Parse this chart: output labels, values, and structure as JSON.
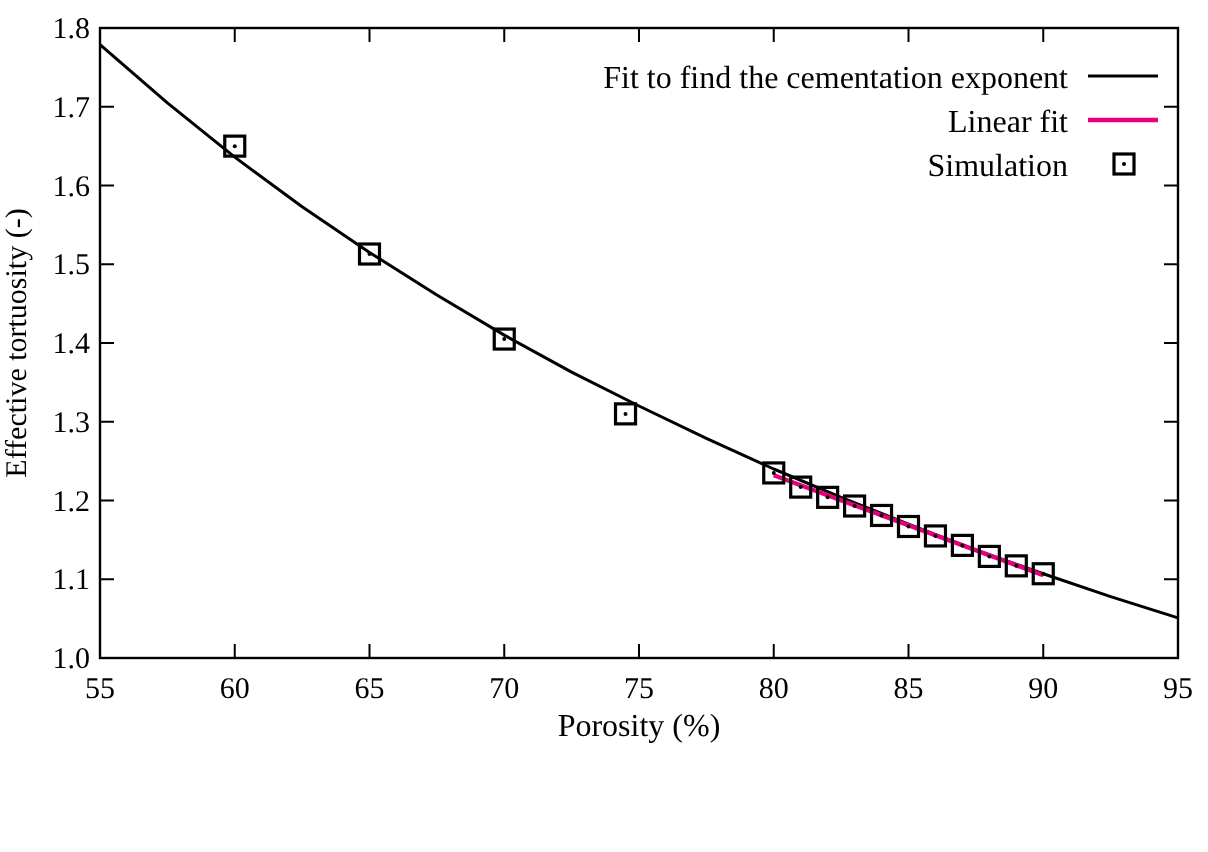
{
  "chart_data": {
    "type": "scatter",
    "xlabel": "Porosity (%)",
    "ylabel": "Effective tortuosity (-)",
    "xlim": [
      55,
      95
    ],
    "xticks": [
      55,
      60,
      65,
      70,
      75,
      80,
      85,
      90,
      95
    ],
    "ylim": [
      1,
      1.8
    ],
    "yticks": [
      {
        "value": 1,
        "label": "1.0"
      },
      1.1,
      1.2,
      1.3,
      1.4,
      1.5,
      1.6,
      1.7,
      1.8
    ],
    "grid": false,
    "legend": "top right",
    "series": [
      {
        "name": "Fit to find the cementation exponent",
        "type": "line",
        "color": "#000000",
        "line_style": "solid",
        "marker": "none",
        "x": [
          55,
          57.5,
          60,
          62.5,
          65,
          67.5,
          70,
          72.5,
          75,
          77.5,
          80,
          82.5,
          85,
          87.5,
          90,
          92.5,
          95
        ],
        "values": [
          1.779,
          1.705,
          1.636,
          1.573,
          1.515,
          1.461,
          1.41,
          1.363,
          1.32,
          1.279,
          1.24,
          1.204,
          1.17,
          1.137,
          1.107,
          1.078,
          1.051
        ]
      },
      {
        "name": "Linear fit",
        "type": "line",
        "color": "#e5007d",
        "line_style": "solid",
        "marker": "none",
        "x": [
          80,
          90
        ],
        "values": [
          1.232,
          1.105
        ]
      },
      {
        "name": "Simulation",
        "color": "#000000",
        "marker": "square",
        "x": [
          60,
          65,
          70,
          74.5,
          80,
          81,
          82,
          83,
          84,
          85,
          86,
          87,
          88,
          89,
          90
        ],
        "values": [
          1.65,
          1.513,
          1.405,
          1.31,
          1.235,
          1.217,
          1.204,
          1.193,
          1.181,
          1.167,
          1.155,
          1.143,
          1.129,
          1.117,
          1.107
        ]
      }
    ]
  }
}
